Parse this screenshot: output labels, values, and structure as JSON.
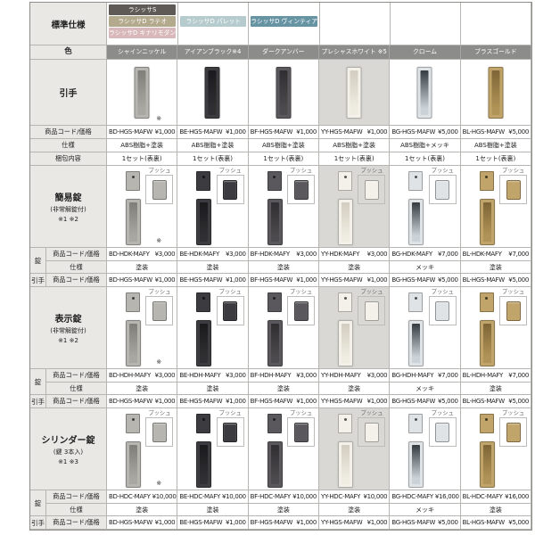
{
  "header": {
    "spec_label": "標準仕様",
    "color_label": "色",
    "badges": [
      {
        "label": "ラシッサS",
        "color": "#5f5a55"
      },
      {
        "label": "ラシッサD ラテオ",
        "color": "#b3aa8d"
      },
      {
        "label": "ラシッサD キナリモダン",
        "color": "#d8b8ba"
      },
      {
        "label": "ラシッサD パレット",
        "color": "#b6cbcd"
      },
      {
        "label": "ラシッサD ヴィンティア",
        "color": "#6794a3"
      }
    ],
    "colors": [
      "シャインニッケル",
      "アイアンブラック※4",
      "ダークアンバー",
      "プレシャスホワイト ※5",
      "クローム",
      "ブラスゴールド"
    ]
  },
  "finishes": [
    {
      "name": "シャインニッケル",
      "main": "#a8a7a1",
      "dark": "#7f7e79",
      "plate": "#b6b5b0"
    },
    {
      "name": "アイアンブラック",
      "main": "#303033",
      "dark": "#1a1a1d",
      "plate": "#3c3c40"
    },
    {
      "name": "ダークアンバー",
      "main": "#4c4a4d",
      "dark": "#302e31",
      "plate": "#5a585c"
    },
    {
      "name": "プレシャスホワイト",
      "main": "#efece2",
      "dark": "#d2cdbf",
      "plate": "#f3f1e9",
      "cellbg": "#d9d8d4"
    },
    {
      "name": "クローム",
      "main": "#ccd3d8",
      "dark": "#343b41",
      "plate": "#dfe3e6"
    },
    {
      "name": "ブラスゴールド",
      "main": "#b09356",
      "dark": "#7e6536",
      "plate": "#c0a469"
    }
  ],
  "sections": [
    {
      "title": "引手",
      "image_note": "※",
      "rows": [
        {
          "label": "商品コード/価格",
          "cells": [
            {
              "c": "BD-HGS-MAFW",
              "p": "¥1,000"
            },
            {
              "c": "BE-HGS-MAFW",
              "p": "¥1,000"
            },
            {
              "c": "BF-HGS-MAFW",
              "p": "¥1,000"
            },
            {
              "c": "YY-HGS-MAFW",
              "p": "¥1,000"
            },
            {
              "c": "BG-HGS-MAFW",
              "p": "¥5,000"
            },
            {
              "c": "BL-HGS-MAFW",
              "p": "¥5,000"
            }
          ]
        },
        {
          "label": "仕様",
          "cells": [
            "ABS樹脂+塗装",
            "ABS樹脂+塗装",
            "ABS樹脂+塗装",
            "ABS樹脂+塗装",
            "ABS樹脂+メッキ",
            "ABS樹脂+塗装"
          ]
        },
        {
          "label": "梱包内容",
          "cells": [
            "1セット(表裏)",
            "1セット(表裏)",
            "1セット(表裏)",
            "1セット(表裏)",
            "1セット(表裏)",
            "1セット(表裏)"
          ]
        }
      ]
    },
    {
      "title": "簡易錠",
      "sub1": "(非常解錠付)",
      "sub2": "※1 ※2",
      "push_label": "プッシュ",
      "image_note": "※",
      "rows": [
        {
          "sub": "錠",
          "label": "商品コード/価格",
          "cells": [
            {
              "c": "BD-HDK-MAFY",
              "p": "¥3,000"
            },
            {
              "c": "BE-HDK-MAFY",
              "p": "¥3,000"
            },
            {
              "c": "BF-HDK-MAFY",
              "p": "¥3,000"
            },
            {
              "c": "YY-HDK-MAFY",
              "p": "¥3,000"
            },
            {
              "c": "BG-HDK-MAFY",
              "p": "¥7,000"
            },
            {
              "c": "BL-HDK-MAFY",
              "p": "¥7,000"
            }
          ]
        },
        {
          "label": "仕様",
          "cells": [
            "塗装",
            "塗装",
            "塗装",
            "塗装",
            "メッキ",
            "塗装"
          ]
        },
        {
          "sub": "引手",
          "label": "商品コード/価格",
          "cells": [
            {
              "c": "BD-HGS-MAFW",
              "p": "¥1,000"
            },
            {
              "c": "BE-HGS-MAFW",
              "p": "¥1,000"
            },
            {
              "c": "BF-HGS-MAFW",
              "p": "¥1,000"
            },
            {
              "c": "YY-HGS-MAFW",
              "p": "¥1,000"
            },
            {
              "c": "BG-HGS-MAFW",
              "p": "¥5,000"
            },
            {
              "c": "BL-HGS-MAFW",
              "p": "¥5,000"
            }
          ]
        }
      ]
    },
    {
      "title": "表示錠",
      "sub1": "(非常解錠付)",
      "sub2": "※1 ※2",
      "push_label": "プッシュ",
      "image_note": "※",
      "rows": [
        {
          "sub": "錠",
          "label": "商品コード/価格",
          "cells": [
            {
              "c": "BD-HDH-MAFY",
              "p": "¥3,000"
            },
            {
              "c": "BE-HDH-MAFY",
              "p": "¥3,000"
            },
            {
              "c": "BF-HDH-MAFY",
              "p": "¥3,000"
            },
            {
              "c": "YY-HDH-MAFY",
              "p": "¥3,000"
            },
            {
              "c": "BG-HDH-MAFY",
              "p": "¥7,000"
            },
            {
              "c": "BL-HDH-MAFY",
              "p": "¥7,000"
            }
          ]
        },
        {
          "label": "仕様",
          "cells": [
            "塗装",
            "塗装",
            "塗装",
            "塗装",
            "メッキ",
            "塗装"
          ]
        },
        {
          "sub": "引手",
          "label": "商品コード/価格",
          "cells": [
            {
              "c": "BD-HGS-MAFW",
              "p": "¥1,000"
            },
            {
              "c": "BE-HGS-MAFW",
              "p": "¥1,000"
            },
            {
              "c": "BF-HGS-MAFW",
              "p": "¥1,000"
            },
            {
              "c": "YY-HGS-MAFW",
              "p": "¥1,000"
            },
            {
              "c": "BG-HGS-MAFW",
              "p": "¥5,000"
            },
            {
              "c": "BL-HGS-MAFW",
              "p": "¥5,000"
            }
          ]
        }
      ]
    },
    {
      "title": "シリンダー錠",
      "sub1": "(鍵 3本入)",
      "sub2": "※1 ※3",
      "push_label": "プッシュ",
      "image_note": "※",
      "rows": [
        {
          "sub": "錠",
          "label": "商品コード/価格",
          "cells": [
            {
              "c": "BD-HDC-MAFY",
              "p": "¥10,000"
            },
            {
              "c": "BE-HDC-MAFY",
              "p": "¥10,000"
            },
            {
              "c": "BF-HDC-MAFY",
              "p": "¥10,000"
            },
            {
              "c": "YY-HDC-MAFY",
              "p": "¥10,000"
            },
            {
              "c": "BG-HDC-MAFY",
              "p": "¥16,000"
            },
            {
              "c": "BL-HDC-MAFY",
              "p": "¥16,000"
            }
          ]
        },
        {
          "label": "仕様",
          "cells": [
            "塗装",
            "塗装",
            "塗装",
            "塗装",
            "メッキ",
            "塗装"
          ]
        },
        {
          "sub": "引手",
          "label": "商品コード/価格",
          "cells": [
            {
              "c": "BD-HGS-MAFW",
              "p": "¥1,000"
            },
            {
              "c": "BE-HGS-MAFW",
              "p": "¥1,000"
            },
            {
              "c": "BF-HGS-MAFW",
              "p": "¥1,000"
            },
            {
              "c": "YY-HGS-MAFW",
              "p": "¥1,000"
            },
            {
              "c": "BG-HGS-MAFW",
              "p": "¥5,000"
            },
            {
              "c": "BL-HGS-MAFW",
              "p": "¥5,000"
            }
          ]
        }
      ]
    }
  ]
}
